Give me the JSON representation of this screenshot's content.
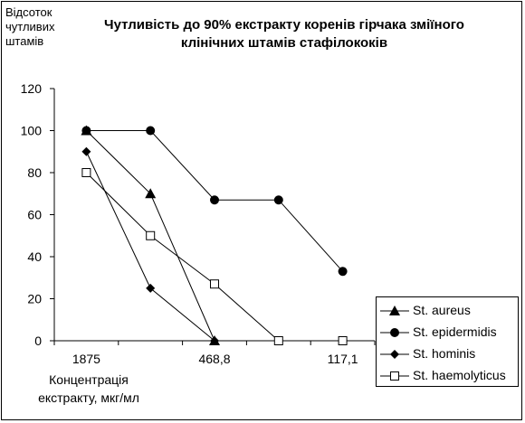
{
  "chart_data": {
    "type": "line",
    "title_line1": "Чутливість до 90% екстракту коренів гірчака зміїного",
    "title_line2": "клінічних штамів стафілококів",
    "ylabel": "Відсоток чутливих штамів",
    "xlabel_line1": "Концентрація",
    "xlabel_line2": "екстракту, мкг/мл",
    "x_tick_labels": [
      "1875",
      "",
      "468,8",
      "",
      "117,1"
    ],
    "x": [
      1,
      2,
      3,
      4,
      5
    ],
    "ylim": [
      0,
      120
    ],
    "y_ticks": [
      0,
      20,
      40,
      60,
      80,
      100,
      120
    ],
    "grid": false,
    "legend_position": "bottom-right",
    "series": [
      {
        "name": "St. aureus",
        "marker": "triangle",
        "values": [
          100,
          70,
          0,
          null,
          null
        ]
      },
      {
        "name": "St. epidermidis",
        "marker": "circle",
        "values": [
          100,
          100,
          67,
          67,
          33
        ]
      },
      {
        "name": "St. hominis",
        "marker": "diamond",
        "values": [
          90,
          25,
          0,
          null,
          null
        ]
      },
      {
        "name": "St. haemolyticus",
        "marker": "open-square",
        "values": [
          80,
          50,
          27,
          0,
          0
        ]
      }
    ]
  }
}
